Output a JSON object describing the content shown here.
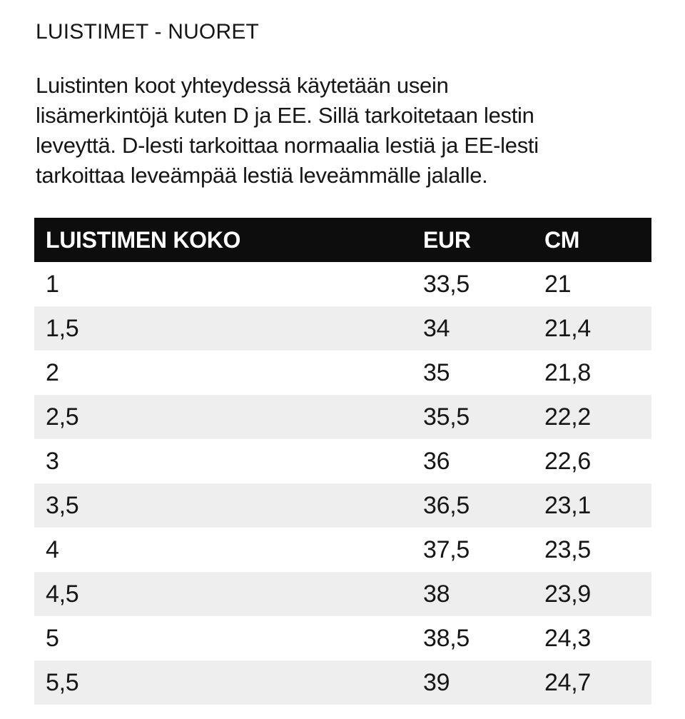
{
  "title": "LUISTIMET - NUORET",
  "paragraph_lines": [
    "Luistinten koot yhteydessä käytetään usein",
    "lisämerkintöjä kuten D ja EE. Sillä tarkoitetaan lestin",
    "leveyttä. D-lesti tarkoittaa normaalia lestiä ja EE-lesti",
    "tarkoittaa leveämpää lestiä leveämmälle jalalle."
  ],
  "table": {
    "headers": [
      "LUISTIMEN KOKO",
      "EUR",
      "CM"
    ],
    "rows": [
      [
        "1",
        "33,5",
        "21"
      ],
      [
        "1,5",
        "34",
        "21,4"
      ],
      [
        "2",
        "35",
        "21,8"
      ],
      [
        "2,5",
        "35,5",
        "22,2"
      ],
      [
        "3",
        "36",
        "22,6"
      ],
      [
        "3,5",
        "36,5",
        "23,1"
      ],
      [
        "4",
        "37,5",
        "23,5"
      ],
      [
        "4,5",
        "38",
        "23,9"
      ],
      [
        "5",
        "38,5",
        "24,3"
      ],
      [
        "5,5",
        "39",
        "24,7"
      ]
    ]
  },
  "colors": {
    "text": "#161616",
    "header_bg": "#0d0d0d",
    "header_text": "#ffffff",
    "row_stripe_bg": "#eeeeee",
    "page_bg": "#ffffff"
  }
}
